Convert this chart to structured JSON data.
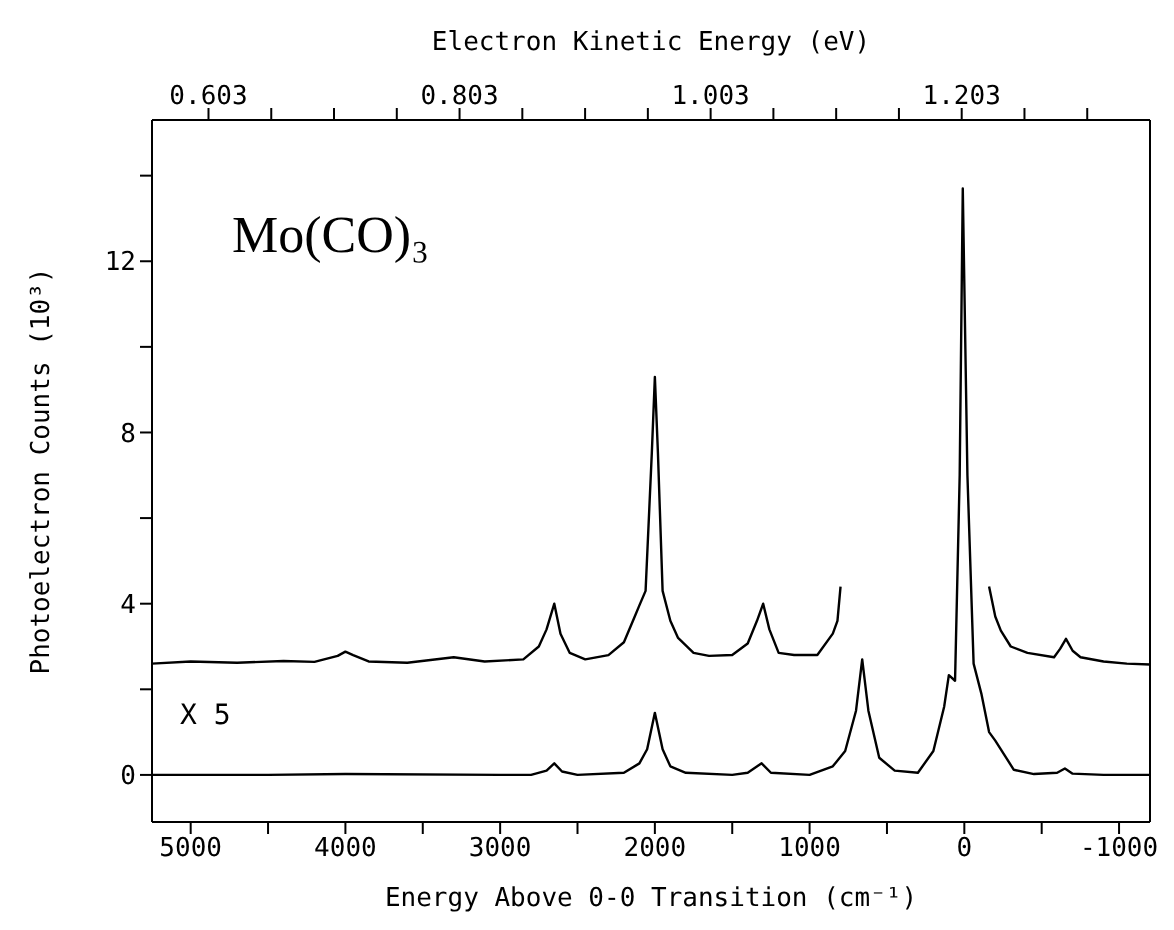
{
  "chart_data": {
    "type": "line",
    "title": "Mo(CO)₃",
    "xlabel": "Energy Above 0-0 Transition (cm⁻¹)",
    "ylabel": "Photoelectron Counts (10³)",
    "x2label": "Electron Kinetic Energy (eV)",
    "xlim": [
      5250,
      -1200
    ],
    "xticks": [
      5000,
      {
        "value": 4500,
        "label": null
      },
      4000,
      {
        "value": 3500,
        "label": null
      },
      3000,
      {
        "value": 2500,
        "label": null
      },
      2000,
      {
        "value": 1500,
        "label": null
      },
      1000,
      {
        "value": 500,
        "label": null
      },
      0,
      {
        "value": -500,
        "label": null
      },
      -1000
    ],
    "x2lim": [
      0.558,
      1.353
    ],
    "x2ticks": [
      0.603,
      {
        "value": 0.653,
        "label": null
      },
      {
        "value": 0.703,
        "label": null
      },
      {
        "value": 0.753,
        "label": null
      },
      0.803,
      {
        "value": 0.853,
        "label": null
      },
      {
        "value": 0.903,
        "label": null
      },
      {
        "value": 0.953,
        "label": null
      },
      1.003,
      {
        "value": 1.053,
        "label": null
      },
      {
        "value": 1.103,
        "label": null
      },
      {
        "value": 1.153,
        "label": null
      },
      1.203,
      {
        "value": 1.253,
        "label": null
      },
      {
        "value": 1.303,
        "label": null
      }
    ],
    "ylim": [
      -1.1,
      15.3
    ],
    "yticks": [
      0,
      {
        "value": 2,
        "label": null
      },
      4,
      {
        "value": 6,
        "label": null
      },
      8,
      {
        "value": 10,
        "label": null
      },
      12,
      {
        "value": 14,
        "label": null
      }
    ],
    "marker": "none",
    "line_style": "solid",
    "annotations": [
      "X 5"
    ],
    "series": [
      {
        "color": "#000000",
        "x": [
          5250,
          5000,
          4700,
          4400,
          4200,
          4050,
          4000,
          3950,
          3850,
          3600,
          3300,
          3100,
          2850,
          2750,
          2700,
          2650,
          2610,
          2550,
          2450,
          2300,
          2200,
          2130,
          2100,
          2060,
          2020,
          2000,
          1980,
          1950,
          1900,
          1850,
          1750,
          1650,
          1500,
          1400,
          1340,
          1300,
          1260,
          1200,
          1100,
          950,
          850,
          820,
          800,
          400,
          -160,
          -200,
          -236,
          -300,
          -408,
          -580,
          -620,
          -657,
          -700,
          -751,
          -900,
          -1050,
          -1200
        ],
        "values": [
          2.6,
          2.65,
          2.62,
          2.66,
          2.64,
          2.78,
          2.88,
          2.8,
          2.65,
          2.62,
          2.75,
          2.65,
          2.7,
          3.0,
          3.4,
          4.0,
          3.3,
          2.85,
          2.7,
          2.8,
          3.1,
          3.7,
          3.96,
          4.3,
          7.5,
          9.3,
          7.5,
          4.3,
          3.6,
          3.2,
          2.85,
          2.78,
          2.8,
          3.07,
          3.6,
          4.0,
          3.4,
          2.85,
          2.8,
          2.8,
          3.3,
          3.6,
          4.4,
          null,
          4.4,
          3.7,
          3.37,
          3.0,
          2.85,
          2.75,
          2.95,
          3.18,
          2.9,
          2.75,
          2.65,
          2.6,
          2.58
        ]
      },
      {
        "color": "#000000",
        "x": [
          5250,
          4500,
          4000,
          3000,
          2800,
          2700,
          2650,
          2600,
          2500,
          2200,
          2100,
          2050,
          2000,
          1950,
          1900,
          1800,
          1500,
          1400,
          1310,
          1250,
          1000,
          850,
          770,
          700,
          660,
          620,
          550,
          450,
          300,
          200,
          130,
          100,
          60,
          30,
          10,
          -20,
          -60,
          -110,
          -160,
          -200,
          -320,
          -450,
          -600,
          -650,
          -700,
          -900,
          -1200
        ],
        "values": [
          0,
          0,
          0.02,
          0,
          0,
          0.1,
          0.27,
          0.08,
          0,
          0.05,
          0.27,
          0.6,
          1.45,
          0.6,
          0.2,
          0.05,
          0,
          0.05,
          0.27,
          0.05,
          0,
          0.2,
          0.56,
          1.5,
          2.7,
          1.5,
          0.4,
          0.1,
          0.05,
          0.56,
          1.6,
          2.33,
          2.2,
          7,
          13.7,
          7,
          2.6,
          1.9,
          1.0,
          0.8,
          0.12,
          0.02,
          0.05,
          0.15,
          0.03,
          0,
          0
        ]
      }
    ]
  }
}
